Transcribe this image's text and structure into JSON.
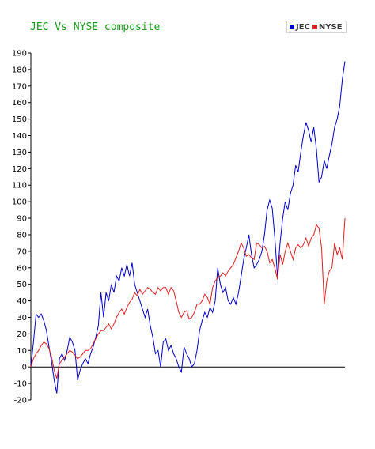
{
  "chart_data": {
    "type": "line",
    "title": "JEC Vs NYSE composite",
    "xlabel": "",
    "ylabel": "",
    "ylim": [
      -20,
      190
    ],
    "yticks": [
      -20,
      -10,
      0,
      10,
      20,
      30,
      40,
      50,
      60,
      70,
      80,
      90,
      100,
      110,
      120,
      130,
      140,
      150,
      160,
      170,
      180,
      190
    ],
    "grid": false,
    "legend_position": "top-right",
    "series": [
      {
        "name": "JEC",
        "color": "#0000cc",
        "values": [
          0,
          15,
          32,
          30,
          32,
          28,
          22,
          12,
          3,
          -8,
          -16,
          5,
          8,
          4,
          10,
          18,
          15,
          10,
          -8,
          -2,
          2,
          5,
          2,
          8,
          12,
          18,
          25,
          45,
          30,
          45,
          40,
          50,
          45,
          55,
          52,
          60,
          55,
          62,
          55,
          63,
          50,
          45,
          40,
          35,
          30,
          35,
          25,
          18,
          8,
          10,
          0,
          15,
          17,
          10,
          13,
          8,
          5,
          0,
          -3,
          12,
          8,
          5,
          0,
          2,
          10,
          22,
          28,
          33,
          30,
          36,
          33,
          40,
          60,
          50,
          45,
          48,
          40,
          38,
          42,
          38,
          45,
          55,
          65,
          72,
          80,
          68,
          60,
          62,
          65,
          70,
          80,
          95,
          101,
          96,
          78,
          55,
          75,
          90,
          100,
          95,
          105,
          110,
          122,
          118,
          130,
          140,
          148,
          143,
          136,
          145,
          132,
          112,
          115,
          125,
          120,
          128,
          135,
          145,
          150,
          158,
          174,
          185
        ]
      },
      {
        "name": "NYSE",
        "color": "#e02020",
        "values": [
          0,
          5,
          8,
          10,
          13,
          15,
          14,
          11,
          6,
          -2,
          -7,
          2,
          4,
          6,
          8,
          10,
          9,
          7,
          5,
          6,
          8,
          10,
          10,
          11,
          14,
          17,
          20,
          22,
          22,
          24,
          26,
          23,
          26,
          30,
          33,
          35,
          32,
          36,
          39,
          41,
          45,
          43,
          47,
          44,
          46,
          48,
          47,
          45,
          44,
          48,
          46,
          48,
          48,
          44,
          48,
          46,
          40,
          33,
          30,
          33,
          34,
          29,
          30,
          33,
          38,
          38,
          40,
          44,
          42,
          38,
          48,
          52,
          54,
          55,
          57,
          55,
          58,
          60,
          62,
          66,
          70,
          75,
          72,
          67,
          68,
          66,
          65,
          75,
          74,
          72,
          73,
          70,
          63,
          65,
          60,
          53,
          68,
          62,
          70,
          75,
          70,
          65,
          72,
          74,
          72,
          74,
          78,
          73,
          78,
          80,
          86,
          84,
          72,
          38,
          52,
          58,
          60,
          75,
          68,
          72,
          65,
          90
        ]
      }
    ]
  }
}
